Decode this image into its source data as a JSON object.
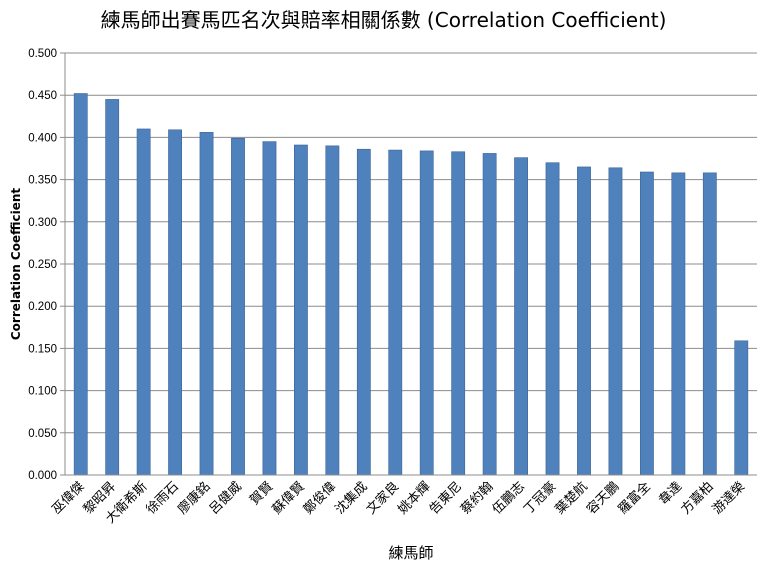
{
  "chart_data": {
    "type": "bar",
    "title": "練馬師出賽馬匹名次與賠率相關係數 (Correlation Coefficient)",
    "xlabel": "練馬師",
    "ylabel": "Correlation Coefficient",
    "ylim": [
      0,
      0.5
    ],
    "yticks": [
      "0.000",
      "0.050",
      "0.100",
      "0.150",
      "0.200",
      "0.250",
      "0.300",
      "0.350",
      "0.400",
      "0.450",
      "0.500"
    ],
    "grid": true,
    "bar_color": "#4F81BD",
    "categories": [
      "巫偉傑",
      "黎昭昇",
      "大衛希斯",
      "徐雨石",
      "廖康銘",
      "呂健威",
      "賀賢",
      "蘇偉賢",
      "鄭俊偉",
      "沈集成",
      "文家良",
      "姚本輝",
      "告東尼",
      "蔡約翰",
      "伍鵬志",
      "丁冠豪",
      "葉楚航",
      "容天鵬",
      "羅富全",
      "韋達",
      "方嘉柏",
      "游達榮"
    ],
    "values": [
      0.452,
      0.445,
      0.41,
      0.409,
      0.406,
      0.399,
      0.395,
      0.391,
      0.39,
      0.386,
      0.385,
      0.384,
      0.383,
      0.381,
      0.376,
      0.37,
      0.365,
      0.364,
      0.359,
      0.358,
      0.358,
      0.159
    ]
  }
}
